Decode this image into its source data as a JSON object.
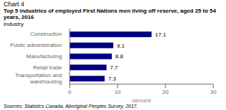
{
  "chart_data": {
    "type": "bar",
    "title": "Chart 4",
    "subtitle": "Top 5 industries of employed First Nations men living off reserve, aged 25 to 54 years, 2016",
    "ylabel": "Industry",
    "xlabel": "percent",
    "categories": [
      "Construction",
      "Public administration",
      "Manufacturing",
      "Retail trade",
      "Transportation and\nwarehousing"
    ],
    "values": [
      17.1,
      9.1,
      8.8,
      7.7,
      7.3
    ],
    "color": "#00007f",
    "xlim": [
      0,
      30
    ],
    "xticks": [
      0,
      10,
      20,
      30
    ],
    "orientation": "horizontal",
    "data_labels": true,
    "grid": false,
    "annotations": [
      "Sources: Statistics Canada, Aboriginal Peoples Survey, 2017."
    ]
  }
}
